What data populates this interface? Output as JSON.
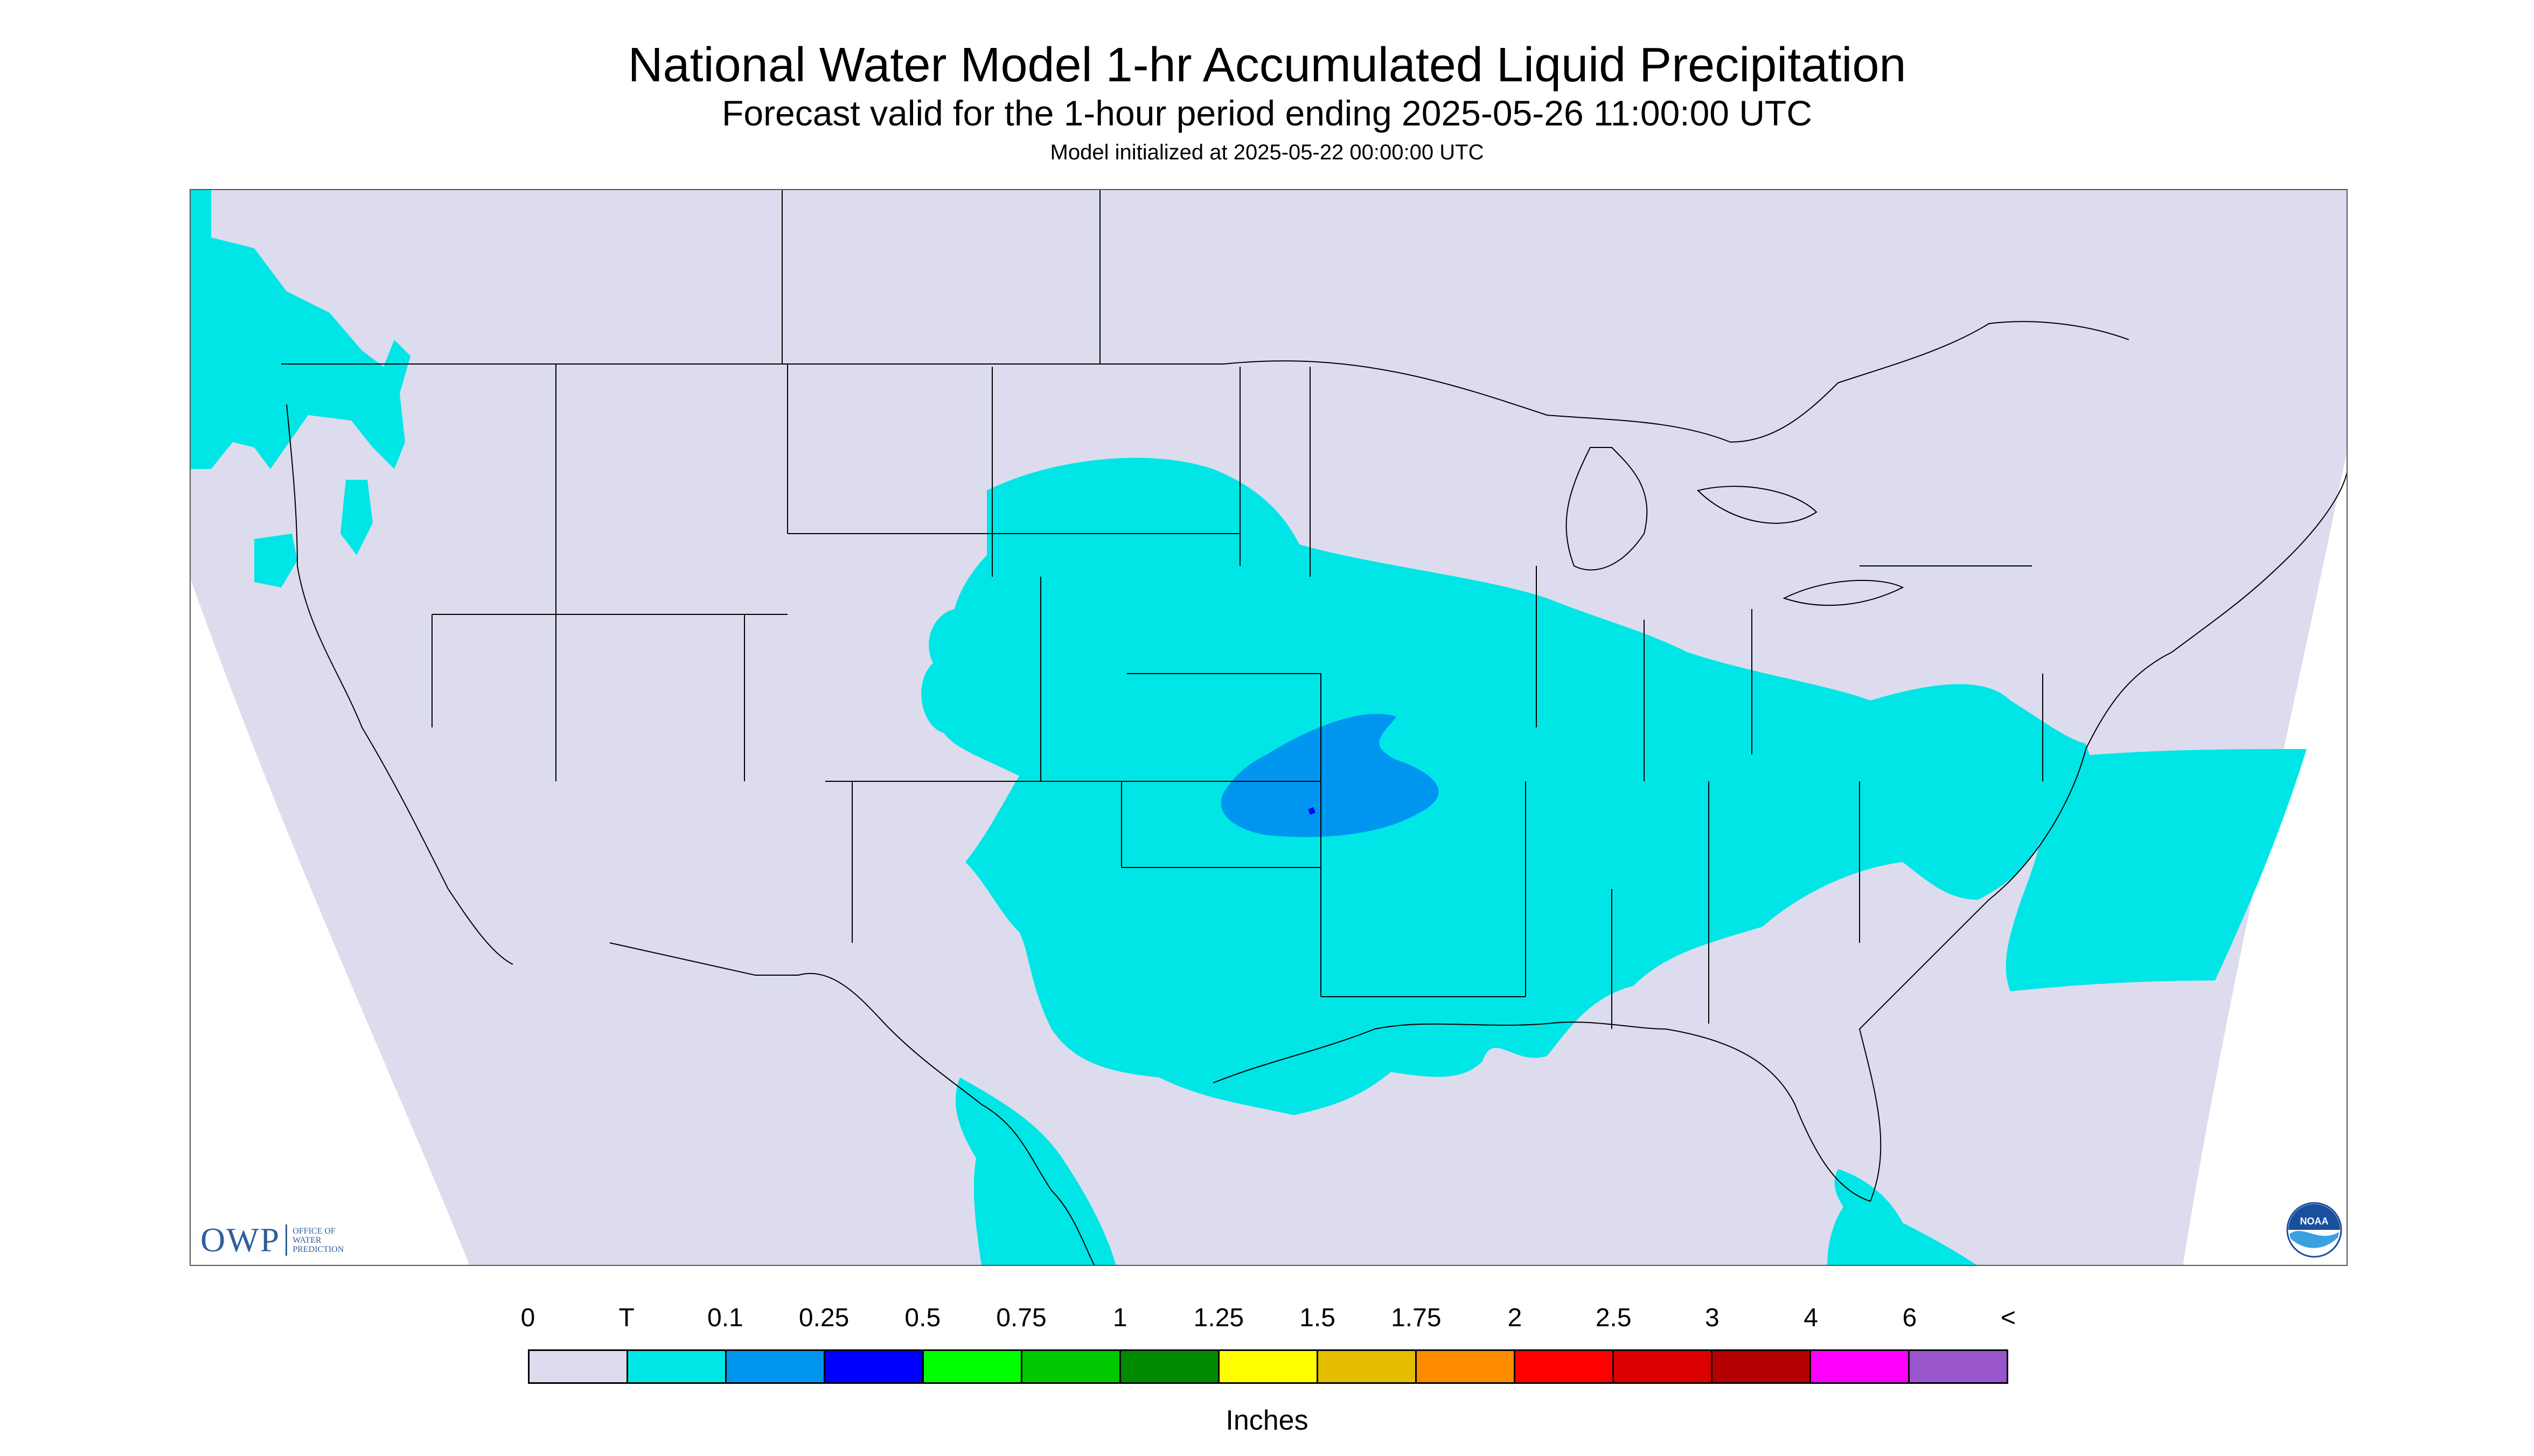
{
  "title": "National Water Model 1-hr Accumulated Liquid Precipitation",
  "subtitle": "Forecast valid for the 1-hour period ending 2025-05-26 11:00:00 UTC",
  "model_init": "Model initialized at 2025-05-22 00:00:00 UTC",
  "legend": {
    "unit": "Inches",
    "labels": [
      "0",
      "T",
      "0.1",
      "0.25",
      "0.5",
      "0.75",
      "1",
      "1.25",
      "1.5",
      "1.75",
      "2",
      "2.5",
      "3",
      "4",
      "6",
      "<"
    ],
    "colors": [
      "#dcdcee",
      "#00e6e6",
      "#0096f0",
      "#0000ff",
      "#00ff00",
      "#00c800",
      "#008c00",
      "#ffff00",
      "#e6be00",
      "#ff8c00",
      "#ff0000",
      "#dc0000",
      "#b40000",
      "#ff00ff",
      "#9955cc"
    ]
  },
  "logos": {
    "owp_mark": "OWP",
    "owp_text": [
      "OFFICE OF",
      "WATER",
      "PREDICTION"
    ],
    "noaa": "NOAA"
  },
  "colors": {
    "background": "#dcdcee",
    "trace": "#00e6e6",
    "light": "#0096f0",
    "border": "#000000"
  }
}
